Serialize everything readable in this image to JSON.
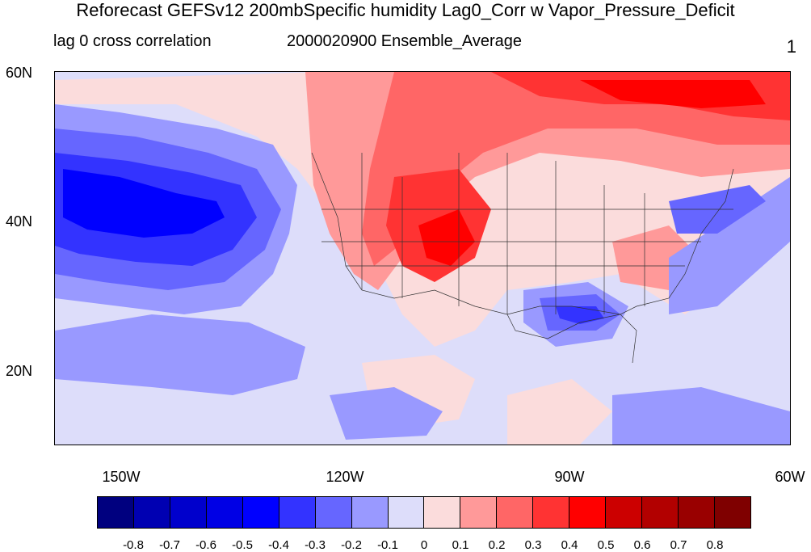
{
  "header": {
    "title": "Reforecast GEFSv12 200mbSpecific humidity Lag0_Corr w Vapor_Pressure_Deficit",
    "left_subtitle": "lag 0 cross correlation",
    "center_subtitle": "2000020900 Ensemble_Average",
    "right_label": "1"
  },
  "axes": {
    "lat_labels": [
      "60N",
      "40N",
      "20N"
    ],
    "lon_labels": [
      "150W",
      "120W",
      "90W",
      "60W"
    ]
  },
  "colorbar": {
    "colors": [
      "#00007f",
      "#0000b2",
      "#0000cc",
      "#0000e5",
      "#0000ff",
      "#3333ff",
      "#6666ff",
      "#9999ff",
      "#ddddfa",
      "#fbdcdc",
      "#ff9999",
      "#ff6666",
      "#ff3333",
      "#ff0000",
      "#cc0000",
      "#b20000",
      "#990000",
      "#7f0000"
    ],
    "tick_labels": [
      "-0.8",
      "-0.7",
      "-0.6",
      "-0.5",
      "-0.4",
      "-0.3",
      "-0.2",
      "-0.1",
      "0",
      "0.1",
      "0.2",
      "0.3",
      "0.4",
      "0.5",
      "0.6",
      "0.7",
      "0.8"
    ]
  }
}
